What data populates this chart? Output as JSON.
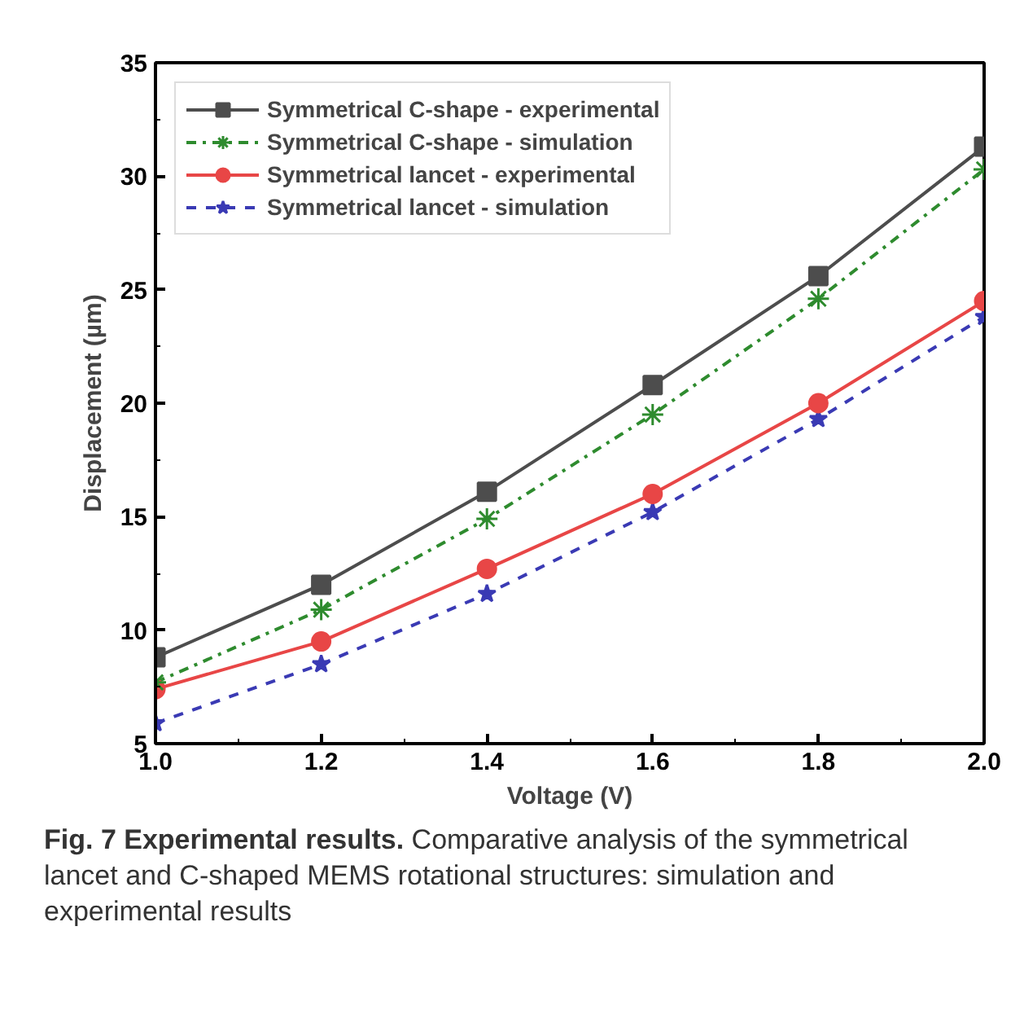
{
  "chart_data": {
    "type": "line",
    "xlabel": "Voltage (V)",
    "ylabel": "Displacement (µm)",
    "x": [
      1.0,
      1.2,
      1.4,
      1.6,
      1.8,
      2.0
    ],
    "series": [
      {
        "name": "Symmetrical C-shape - experimental",
        "color": "#4d4d4d",
        "marker": "square",
        "line_style": "solid",
        "values": [
          8.8,
          12.0,
          16.1,
          20.8,
          25.6,
          31.3
        ]
      },
      {
        "name": "Symmetrical C-shape - simulation",
        "color": "#2e8b2e",
        "marker": "cross",
        "line_style": "dashdot",
        "values": [
          7.7,
          10.9,
          14.9,
          19.5,
          24.6,
          30.3
        ]
      },
      {
        "name": "Symmetrical lancet - experimental",
        "color": "#e84646",
        "marker": "circle",
        "line_style": "solid",
        "values": [
          7.4,
          9.5,
          12.7,
          16.0,
          20.0,
          24.5
        ]
      },
      {
        "name": "Symmetrical lancet - simulation",
        "color": "#3a3ab4",
        "marker": "star",
        "line_style": "dashed",
        "values": [
          5.9,
          8.5,
          11.6,
          15.2,
          19.3,
          23.8
        ]
      }
    ],
    "xlim": [
      1.0,
      2.0
    ],
    "xticks": [
      {
        "value": 1.0,
        "label": "1.0"
      },
      1.2,
      1.4,
      1.6,
      1.8,
      {
        "value": 2.0,
        "label": "2.0"
      }
    ],
    "ylim": [
      5,
      35
    ],
    "yticks": [
      5,
      10,
      15,
      20,
      25,
      30,
      35
    ],
    "grid": false,
    "legend": "top left",
    "annotations": [
      "Fig. 7 Experimental results.",
      "Comparative analysis of the symmetrical lancet and C-shaped MEMS rotational structures: simulation and experimental results"
    ]
  }
}
